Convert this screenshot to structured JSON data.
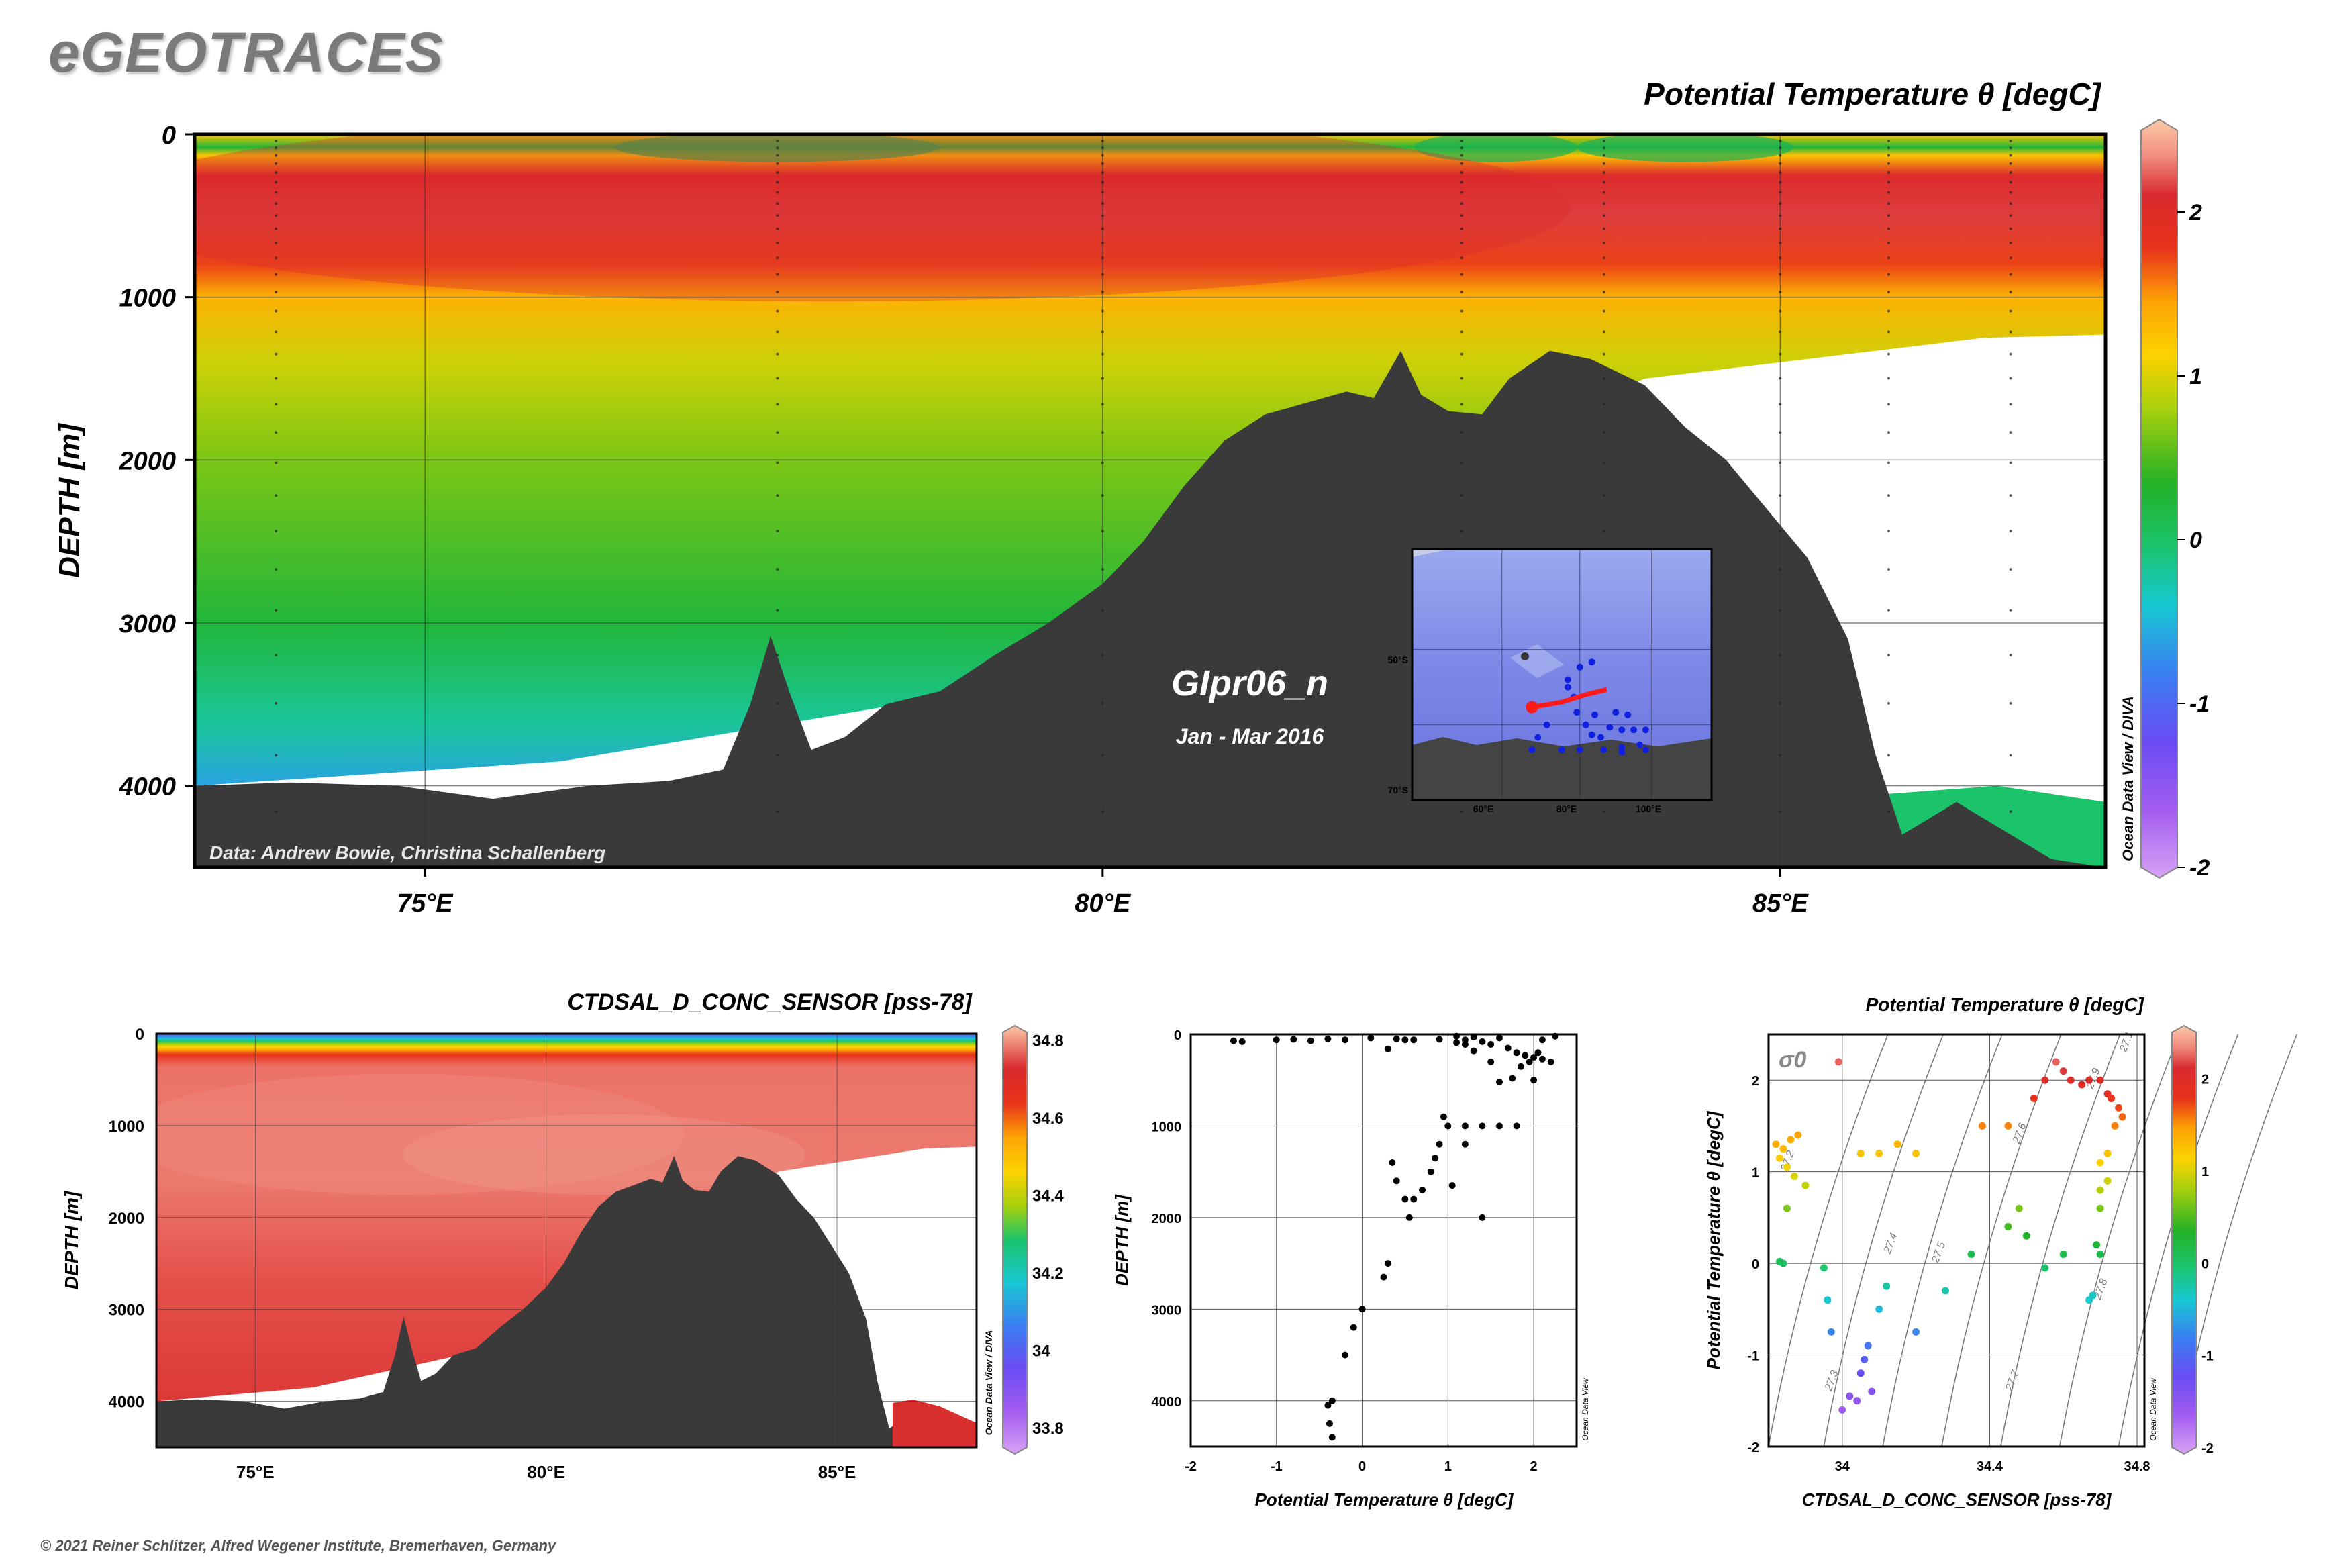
{
  "brand": "eGEOTRACES",
  "copyright": "© 2021 Reiner Schlitzer, Alfred Wegener Institute, Bremerhaven, Germany",
  "colors": {
    "seafloor": "#3a3a3a",
    "frame": "#000000",
    "grid": "#555555",
    "brand": "#7a7a7a"
  },
  "chart_data": [
    {
      "id": "main-section",
      "type": "heatmap",
      "title": "Potential Temperature θ [degC]",
      "ylabel": "DEPTH [m]",
      "xlim": [
        73.3,
        87.4
      ],
      "ylim": [
        4500,
        0
      ],
      "x_ticks": [
        75,
        80,
        85
      ],
      "x_tick_labels": [
        "75°E",
        "80°E",
        "85°E"
      ],
      "y_ticks": [
        0,
        1000,
        2000,
        3000,
        4000
      ],
      "y_tick_labels": [
        "0",
        "1000",
        "2000",
        "3000",
        "4000"
      ],
      "cruise": "GIpr06_n",
      "period": "Jan - Mar 2016",
      "data_credit": "Data: Andrew Bowie, Christina Schallenberg",
      "odv_credit": "Ocean Data View / DIVA",
      "colorbar": {
        "min": -2,
        "max": 2.5,
        "ticks": [
          2,
          1,
          0,
          -1,
          -2
        ],
        "tick_labels": [
          "2",
          "1",
          "0",
          "-1",
          "-2"
        ]
      },
      "bathymetry": [
        [
          73.3,
          4000
        ],
        [
          74,
          3980
        ],
        [
          74.8,
          4000
        ],
        [
          75.5,
          4080
        ],
        [
          76.2,
          4000
        ],
        [
          76.8,
          3970
        ],
        [
          77.2,
          3900
        ],
        [
          77.4,
          3500
        ],
        [
          77.55,
          3080
        ],
        [
          77.7,
          3450
        ],
        [
          77.85,
          3780
        ],
        [
          78.1,
          3700
        ],
        [
          78.4,
          3500
        ],
        [
          78.8,
          3420
        ],
        [
          79.2,
          3200
        ],
        [
          79.6,
          3000
        ],
        [
          80.0,
          2760
        ],
        [
          80.3,
          2500
        ],
        [
          80.6,
          2160
        ],
        [
          80.9,
          1880
        ],
        [
          81.2,
          1720
        ],
        [
          81.5,
          1650
        ],
        [
          81.8,
          1580
        ],
        [
          82.0,
          1620
        ],
        [
          82.2,
          1330
        ],
        [
          82.35,
          1600
        ],
        [
          82.55,
          1700
        ],
        [
          82.8,
          1720
        ],
        [
          83.0,
          1500
        ],
        [
          83.3,
          1330
        ],
        [
          83.6,
          1380
        ],
        [
          84.0,
          1540
        ],
        [
          84.3,
          1800
        ],
        [
          84.6,
          2000
        ],
        [
          84.9,
          2300
        ],
        [
          85.2,
          2600
        ],
        [
          85.5,
          3100
        ],
        [
          85.7,
          3800
        ],
        [
          85.9,
          4300
        ],
        [
          86.1,
          4200
        ],
        [
          86.3,
          4100
        ],
        [
          86.6,
          4250
        ],
        [
          87.0,
          4450
        ],
        [
          87.4,
          4500
        ]
      ],
      "data_extent": [
        [
          73.3,
          4000
        ],
        [
          76,
          3850
        ],
        [
          78.5,
          3500
        ],
        [
          80,
          3200
        ],
        [
          82,
          2200
        ],
        [
          84,
          1500
        ],
        [
          85.5,
          1350
        ],
        [
          86.5,
          1250
        ],
        [
          87.4,
          1230
        ]
      ],
      "isotherm_profile": [
        [
          0,
          1.2
        ],
        [
          80,
          0.2
        ],
        [
          130,
          1.2
        ],
        [
          250,
          2.0
        ],
        [
          500,
          2.1
        ],
        [
          800,
          1.7
        ],
        [
          1000,
          1.3
        ],
        [
          1400,
          0.9
        ],
        [
          2000,
          0.6
        ],
        [
          3000,
          0.2
        ],
        [
          3600,
          -0.2
        ],
        [
          4000,
          -0.6
        ],
        [
          4500,
          -0.9
        ]
      ],
      "stations_x": [
        73.9,
        77.6,
        80.0,
        82.65,
        83.7,
        85.0,
        85.8,
        86.7
      ],
      "inset_map": {
        "ytick_labels": [
          "50°S",
          "70°S"
        ],
        "xtick_labels": [
          "60°E",
          "80°E",
          "100°E"
        ],
        "station_track": [
          [
            0.4,
            0.63
          ],
          [
            0.5,
            0.61
          ],
          [
            0.58,
            0.58
          ],
          [
            0.65,
            0.56
          ]
        ],
        "stations": [
          [
            0.52,
            0.55
          ],
          [
            0.54,
            0.59
          ],
          [
            0.55,
            0.65
          ],
          [
            0.58,
            0.7
          ],
          [
            0.61,
            0.66
          ],
          [
            0.6,
            0.74
          ],
          [
            0.63,
            0.75
          ],
          [
            0.66,
            0.71
          ],
          [
            0.68,
            0.65
          ],
          [
            0.7,
            0.72
          ],
          [
            0.7,
            0.79
          ],
          [
            0.72,
            0.66
          ],
          [
            0.74,
            0.72
          ],
          [
            0.76,
            0.78
          ],
          [
            0.45,
            0.7
          ],
          [
            0.42,
            0.75
          ],
          [
            0.4,
            0.8
          ],
          [
            0.5,
            0.8
          ],
          [
            0.56,
            0.8
          ],
          [
            0.64,
            0.8
          ],
          [
            0.7,
            0.81
          ],
          [
            0.78,
            0.8
          ],
          [
            0.78,
            0.72
          ],
          [
            0.56,
            0.47
          ],
          [
            0.6,
            0.45
          ],
          [
            0.52,
            0.52
          ]
        ]
      }
    },
    {
      "id": "salinity-section",
      "type": "heatmap",
      "title": "CTDSAL_D_CONC_SENSOR [pss-78]",
      "ylabel": "DEPTH [m]",
      "xlim": [
        73.3,
        87.4
      ],
      "ylim": [
        4500,
        0
      ],
      "x_ticks": [
        75,
        80,
        85
      ],
      "x_tick_labels": [
        "75°E",
        "80°E",
        "85°E"
      ],
      "y_ticks": [
        0,
        1000,
        2000,
        3000,
        4000
      ],
      "y_tick_labels": [
        "0",
        "1000",
        "2000",
        "3000",
        "4000"
      ],
      "odv_credit": "Ocean Data View / DIVA",
      "colorbar": {
        "min": 33.75,
        "max": 34.82,
        "ticks": [
          34.8,
          34.6,
          34.4,
          34.2,
          34,
          33.8
        ],
        "tick_labels": [
          "34.8",
          "34.6",
          "34.4",
          "34.2",
          "34",
          "33.8"
        ]
      }
    },
    {
      "id": "profile-scatter",
      "type": "scatter",
      "xlabel": "Potential Temperature θ [degC]",
      "ylabel": "DEPTH [m]",
      "xlim": [
        -2,
        2.5
      ],
      "ylim": [
        4500,
        0
      ],
      "x_ticks": [
        -2,
        -1,
        0,
        1,
        2
      ],
      "x_tick_labels": [
        "-2",
        "-1",
        "0",
        "1",
        "2"
      ],
      "y_ticks": [
        0,
        1000,
        2000,
        3000,
        4000
      ],
      "y_tick_labels": [
        "0",
        "1000",
        "2000",
        "3000",
        "4000"
      ],
      "odv_credit": "Ocean Data View",
      "points": [
        [
          -1.5,
          70
        ],
        [
          -1.4,
          80
        ],
        [
          -1.0,
          60
        ],
        [
          -0.8,
          55
        ],
        [
          -0.6,
          70
        ],
        [
          -0.4,
          50
        ],
        [
          -0.2,
          60
        ],
        [
          0.1,
          40
        ],
        [
          0.4,
          50
        ],
        [
          0.6,
          60
        ],
        [
          0.9,
          55
        ],
        [
          1.1,
          20
        ],
        [
          1.2,
          60
        ],
        [
          1.3,
          30
        ],
        [
          1.4,
          80
        ],
        [
          1.5,
          110
        ],
        [
          1.6,
          40
        ],
        [
          1.7,
          150
        ],
        [
          1.8,
          200
        ],
        [
          1.9,
          230
        ],
        [
          2.0,
          250
        ],
        [
          2.05,
          200
        ],
        [
          2.1,
          270
        ],
        [
          2.2,
          300
        ],
        [
          1.85,
          350
        ],
        [
          1.95,
          300
        ],
        [
          2.0,
          500
        ],
        [
          1.75,
          480
        ],
        [
          1.6,
          520
        ],
        [
          1.5,
          300
        ],
        [
          1.3,
          180
        ],
        [
          1.2,
          110
        ],
        [
          1.1,
          90
        ],
        [
          2.25,
          20
        ],
        [
          2.1,
          60
        ],
        [
          0.3,
          160
        ],
        [
          0.5,
          60
        ],
        [
          1.0,
          1000
        ],
        [
          1.2,
          1000
        ],
        [
          1.4,
          1000
        ],
        [
          1.6,
          1000
        ],
        [
          1.8,
          1000
        ],
        [
          0.95,
          900
        ],
        [
          0.9,
          1200
        ],
        [
          0.85,
          1350
        ],
        [
          0.8,
          1500
        ],
        [
          0.7,
          1700
        ],
        [
          0.6,
          1800
        ],
        [
          0.5,
          1800
        ],
        [
          0.35,
          1400
        ],
        [
          0.4,
          1600
        ],
        [
          0.55,
          2000
        ],
        [
          0.3,
          2500
        ],
        [
          0.25,
          2650
        ],
        [
          0.0,
          3000
        ],
        [
          -0.1,
          3200
        ],
        [
          -0.2,
          3500
        ],
        [
          -0.35,
          4000
        ],
        [
          -0.4,
          4050
        ],
        [
          -0.38,
          4250
        ],
        [
          -0.35,
          4400
        ],
        [
          1.05,
          1650
        ],
        [
          1.4,
          2000
        ],
        [
          1.2,
          1200
        ]
      ]
    },
    {
      "id": "ts-diagram",
      "type": "scatter",
      "title": "Potential Temperature θ [degC]",
      "xlabel": "CTDSAL_D_CONC_SENSOR [pss-78]",
      "ylabel": "Potential Temperature θ [degC]",
      "xlim": [
        33.8,
        34.82
      ],
      "ylim": [
        -2,
        2.5
      ],
      "x_ticks": [
        34,
        34.4,
        34.8
      ],
      "x_tick_labels": [
        "34",
        "34.4",
        "34.8"
      ],
      "y_ticks": [
        2,
        1,
        0,
        -1,
        -2
      ],
      "y_tick_labels": [
        "2",
        "1",
        "0",
        "-1",
        "-2"
      ],
      "sigma_label": "σ0",
      "isopycnal_labels": [
        "27.2",
        "27.3",
        "27.4",
        "27.5",
        "27.6",
        "27.7",
        "27.8",
        "27.9",
        "27.1"
      ],
      "odv_credit": "Ocean Data View",
      "colorbar": {
        "min": -2,
        "max": 2.5,
        "ticks": [
          2,
          1,
          0,
          -1,
          -2
        ],
        "tick_labels": [
          "2",
          "1",
          "0",
          "-1",
          "-2"
        ]
      },
      "points": [
        [
          33.82,
          1.3
        ],
        [
          33.84,
          1.25
        ],
        [
          33.83,
          1.15
        ],
        [
          33.86,
          1.35
        ],
        [
          33.88,
          1.4
        ],
        [
          33.85,
          1.05
        ],
        [
          33.87,
          0.95
        ],
        [
          33.9,
          0.85
        ],
        [
          33.85,
          0.6
        ],
        [
          33.84,
          0.0
        ],
        [
          33.83,
          0.02
        ],
        [
          33.99,
          2.2
        ],
        [
          34.05,
          1.2
        ],
        [
          34.1,
          1.2
        ],
        [
          34.15,
          1.3
        ],
        [
          34.2,
          1.2
        ],
        [
          34.38,
          1.5
        ],
        [
          34.45,
          1.5
        ],
        [
          34.52,
          1.8
        ],
        [
          34.55,
          2.0
        ],
        [
          34.58,
          2.2
        ],
        [
          34.6,
          2.1
        ],
        [
          34.62,
          2.0
        ],
        [
          34.65,
          1.95
        ],
        [
          34.67,
          2.0
        ],
        [
          34.7,
          2.0
        ],
        [
          34.72,
          1.85
        ],
        [
          34.73,
          1.8
        ],
        [
          34.75,
          1.7
        ],
        [
          34.76,
          1.6
        ],
        [
          34.74,
          1.5
        ],
        [
          34.7,
          1.1
        ],
        [
          34.72,
          1.2
        ],
        [
          34.72,
          0.9
        ],
        [
          34.7,
          0.8
        ],
        [
          34.7,
          0.6
        ],
        [
          34.69,
          0.2
        ],
        [
          34.67,
          -0.4
        ],
        [
          34.68,
          -0.35
        ],
        [
          34.7,
          0.1
        ],
        [
          34.5,
          0.3
        ],
        [
          34.45,
          0.4
        ],
        [
          34.48,
          0.6
        ],
        [
          34.35,
          0.1
        ],
        [
          34.28,
          -0.3
        ],
        [
          34.2,
          -0.75
        ],
        [
          34.1,
          -0.5
        ],
        [
          34.07,
          -0.9
        ],
        [
          34.06,
          -1.05
        ],
        [
          34.05,
          -1.2
        ],
        [
          33.97,
          -0.75
        ],
        [
          33.95,
          -0.05
        ],
        [
          33.96,
          -0.4
        ],
        [
          34.12,
          -0.25
        ],
        [
          34.04,
          -1.5
        ],
        [
          34.02,
          -1.45
        ],
        [
          34.08,
          -1.4
        ],
        [
          34.0,
          -1.6
        ],
        [
          34.55,
          -0.05
        ],
        [
          34.6,
          0.1
        ]
      ]
    }
  ]
}
